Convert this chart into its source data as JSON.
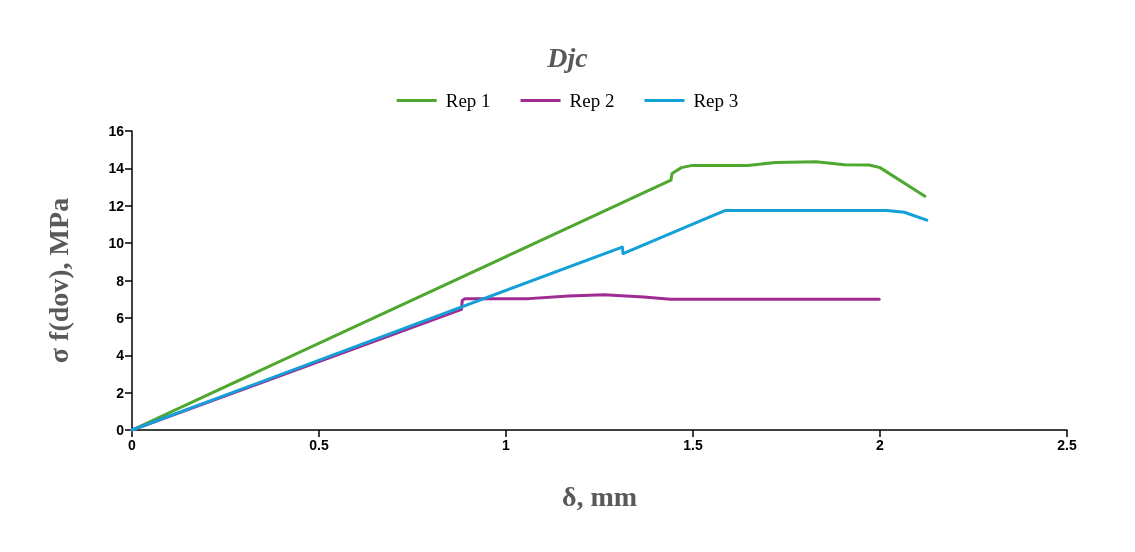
{
  "chart_data": {
    "type": "line",
    "title": "Djc",
    "xlabel": "δ, mm",
    "ylabel": "σ f(dov), MPa",
    "xlim": [
      0,
      2.5
    ],
    "xticks": [
      0,
      0.5,
      1,
      1.5,
      2,
      2.5
    ],
    "ylim": [
      0,
      16
    ],
    "yticks": [
      0,
      2,
      4,
      6,
      8,
      10,
      12,
      14,
      16
    ],
    "grid": false,
    "legend": "top",
    "marker": "none",
    "line_style": "solid",
    "series": [
      {
        "name": "Rep 1",
        "color": "#4ea72e",
        "x": [
          0,
          1.441,
          1.444,
          1.469,
          1.498,
          1.646,
          1.722,
          1.829,
          1.905,
          1.971,
          2.0,
          2.12
        ],
        "values": [
          0,
          13.37,
          13.73,
          14.04,
          14.16,
          14.16,
          14.32,
          14.36,
          14.2,
          14.18,
          14.04,
          12.51
        ]
      },
      {
        "name": "Rep 2",
        "color": "#a02b93",
        "x": [
          0,
          0.881,
          0.883,
          0.89,
          1.061,
          1.167,
          1.262,
          1.368,
          1.44,
          1.998
        ],
        "values": [
          0,
          6.45,
          6.93,
          7.03,
          7.03,
          7.17,
          7.24,
          7.12,
          7.0,
          7.0
        ]
      },
      {
        "name": "Rep 3",
        "color": "#12a0d7",
        "x": [
          0,
          1.311,
          1.313,
          1.545,
          1.587,
          2.018,
          2.065,
          2.125
        ],
        "values": [
          0,
          9.79,
          9.44,
          11.41,
          11.75,
          11.75,
          11.65,
          11.23
        ]
      }
    ]
  }
}
